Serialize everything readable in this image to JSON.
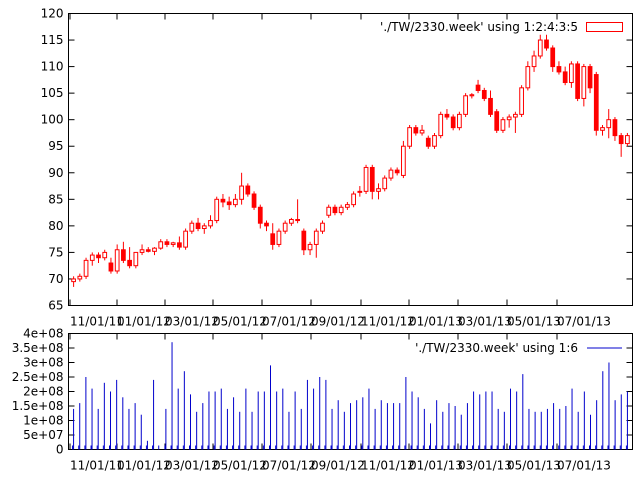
{
  "chart_data": [
    {
      "type": "candlestick",
      "legend": {
        "label": "'./TW/2330.week' using 1:2:4:3:5",
        "position": "top-right"
      },
      "ylim": [
        65,
        120
      ],
      "yticks": [
        65,
        70,
        75,
        80,
        85,
        90,
        95,
        100,
        105,
        110,
        115,
        120
      ],
      "ytick_labels": [
        "65",
        "70",
        "75",
        "80",
        "85",
        "90",
        "95",
        "100",
        "105",
        "110",
        "115",
        "120"
      ],
      "xtick_labels": [
        "11/01/11",
        "01/01/12",
        "03/01/12",
        "05/01/12",
        "07/01/12",
        "09/01/12",
        "11/01/12",
        "01/01/13",
        "03/01/13",
        "05/01/13",
        "07/01/13"
      ],
      "grid": false,
      "colors": {
        "series": "#ff0000",
        "axes": "#000000"
      },
      "candles": [
        {
          "o": 69.5,
          "h": 70.5,
          "l": 68.5,
          "c": 70.0
        },
        {
          "o": 70.0,
          "h": 71.0,
          "l": 69.5,
          "c": 70.5
        },
        {
          "o": 70.5,
          "h": 74.0,
          "l": 70.0,
          "c": 73.5
        },
        {
          "o": 73.5,
          "h": 75.0,
          "l": 72.5,
          "c": 74.5
        },
        {
          "o": 74.5,
          "h": 75.0,
          "l": 73.0,
          "c": 74.0
        },
        {
          "o": 74.0,
          "h": 75.5,
          "l": 73.5,
          "c": 75.0
        },
        {
          "o": 73.0,
          "h": 74.0,
          "l": 71.0,
          "c": 71.5
        },
        {
          "o": 71.5,
          "h": 76.5,
          "l": 71.0,
          "c": 75.5
        },
        {
          "o": 75.5,
          "h": 77.0,
          "l": 73.0,
          "c": 73.5
        },
        {
          "o": 73.5,
          "h": 76.0,
          "l": 72.0,
          "c": 72.5
        },
        {
          "o": 72.5,
          "h": 75.0,
          "l": 72.0,
          "c": 75.0
        },
        {
          "o": 75.0,
          "h": 76.5,
          "l": 74.5,
          "c": 75.5
        },
        {
          "o": 75.5,
          "h": 76.0,
          "l": 75.0,
          "c": 75.2
        },
        {
          "o": 75.2,
          "h": 76.0,
          "l": 74.5,
          "c": 75.8
        },
        {
          "o": 75.8,
          "h": 77.5,
          "l": 75.5,
          "c": 77.0
        },
        {
          "o": 77.0,
          "h": 77.5,
          "l": 76.0,
          "c": 76.5
        },
        {
          "o": 76.5,
          "h": 77.0,
          "l": 76.0,
          "c": 76.8
        },
        {
          "o": 76.8,
          "h": 78.0,
          "l": 75.5,
          "c": 76.0
        },
        {
          "o": 76.0,
          "h": 79.5,
          "l": 75.5,
          "c": 79.0
        },
        {
          "o": 79.0,
          "h": 81.0,
          "l": 78.5,
          "c": 80.5
        },
        {
          "o": 80.5,
          "h": 81.5,
          "l": 79.0,
          "c": 79.5
        },
        {
          "o": 79.5,
          "h": 80.5,
          "l": 78.5,
          "c": 80.0
        },
        {
          "o": 80.0,
          "h": 82.0,
          "l": 79.5,
          "c": 81.0
        },
        {
          "o": 81.0,
          "h": 85.5,
          "l": 80.5,
          "c": 85.0
        },
        {
          "o": 85.0,
          "h": 86.0,
          "l": 83.5,
          "c": 84.5
        },
        {
          "o": 84.5,
          "h": 85.5,
          "l": 83.0,
          "c": 84.0
        },
        {
          "o": 84.0,
          "h": 86.0,
          "l": 83.5,
          "c": 85.0
        },
        {
          "o": 85.0,
          "h": 90.0,
          "l": 84.0,
          "c": 87.5
        },
        {
          "o": 87.5,
          "h": 88.0,
          "l": 85.5,
          "c": 86.0
        },
        {
          "o": 86.0,
          "h": 86.5,
          "l": 83.0,
          "c": 83.5
        },
        {
          "o": 83.5,
          "h": 84.0,
          "l": 79.5,
          "c": 80.5
        },
        {
          "o": 80.5,
          "h": 81.0,
          "l": 79.0,
          "c": 80.0
        },
        {
          "o": 78.5,
          "h": 80.5,
          "l": 75.5,
          "c": 76.5
        },
        {
          "o": 76.5,
          "h": 79.5,
          "l": 76.0,
          "c": 79.0
        },
        {
          "o": 79.0,
          "h": 81.0,
          "l": 78.5,
          "c": 80.5
        },
        {
          "o": 80.5,
          "h": 81.5,
          "l": 80.0,
          "c": 81.2
        },
        {
          "o": 81.2,
          "h": 85.0,
          "l": 80.5,
          "c": 81.0
        },
        {
          "o": 79.0,
          "h": 79.5,
          "l": 74.5,
          "c": 75.5
        },
        {
          "o": 75.5,
          "h": 77.0,
          "l": 74.5,
          "c": 76.5
        },
        {
          "o": 76.5,
          "h": 79.5,
          "l": 74.0,
          "c": 79.0
        },
        {
          "o": 79.0,
          "h": 81.0,
          "l": 78.5,
          "c": 80.5
        },
        {
          "o": 82.0,
          "h": 84.0,
          "l": 81.5,
          "c": 83.5
        },
        {
          "o": 83.5,
          "h": 84.0,
          "l": 82.0,
          "c": 82.5
        },
        {
          "o": 82.5,
          "h": 84.0,
          "l": 82.0,
          "c": 83.5
        },
        {
          "o": 83.5,
          "h": 84.5,
          "l": 83.0,
          "c": 84.0
        },
        {
          "o": 84.0,
          "h": 86.5,
          "l": 83.5,
          "c": 86.0
        },
        {
          "o": 86.5,
          "h": 87.5,
          "l": 85.5,
          "c": 86.5
        },
        {
          "o": 86.5,
          "h": 91.5,
          "l": 86.0,
          "c": 91.0
        },
        {
          "o": 91.0,
          "h": 91.5,
          "l": 85.0,
          "c": 86.5
        },
        {
          "o": 86.5,
          "h": 88.0,
          "l": 85.0,
          "c": 87.0
        },
        {
          "o": 87.0,
          "h": 89.5,
          "l": 86.5,
          "c": 89.0
        },
        {
          "o": 89.0,
          "h": 91.0,
          "l": 88.5,
          "c": 90.5
        },
        {
          "o": 90.5,
          "h": 91.0,
          "l": 89.5,
          "c": 90.0
        },
        {
          "o": 89.5,
          "h": 96.0,
          "l": 89.0,
          "c": 95.0
        },
        {
          "o": 95.0,
          "h": 99.0,
          "l": 94.5,
          "c": 98.5
        },
        {
          "o": 98.5,
          "h": 99.0,
          "l": 97.0,
          "c": 97.5
        },
        {
          "o": 97.5,
          "h": 99.0,
          "l": 97.0,
          "c": 98.0
        },
        {
          "o": 96.5,
          "h": 97.0,
          "l": 94.5,
          "c": 95.0
        },
        {
          "o": 95.0,
          "h": 97.5,
          "l": 94.5,
          "c": 97.0
        },
        {
          "o": 97.0,
          "h": 101.5,
          "l": 96.5,
          "c": 101.0
        },
        {
          "o": 101.0,
          "h": 102.0,
          "l": 100.0,
          "c": 100.5
        },
        {
          "o": 100.5,
          "h": 101.0,
          "l": 98.0,
          "c": 98.5
        },
        {
          "o": 98.5,
          "h": 101.5,
          "l": 98.0,
          "c": 101.0
        },
        {
          "o": 101.0,
          "h": 105.0,
          "l": 100.5,
          "c": 104.5
        },
        {
          "o": 104.5,
          "h": 105.0,
          "l": 104.0,
          "c": 104.7
        },
        {
          "o": 106.5,
          "h": 107.5,
          "l": 105.0,
          "c": 105.5
        },
        {
          "o": 105.5,
          "h": 106.0,
          "l": 103.5,
          "c": 104.0
        },
        {
          "o": 104.0,
          "h": 105.5,
          "l": 100.5,
          "c": 101.0
        },
        {
          "o": 101.5,
          "h": 102.0,
          "l": 97.5,
          "c": 98.0
        },
        {
          "o": 98.0,
          "h": 100.5,
          "l": 97.5,
          "c": 100.0
        },
        {
          "o": 100.0,
          "h": 101.0,
          "l": 98.5,
          "c": 100.5
        },
        {
          "o": 100.5,
          "h": 101.5,
          "l": 97.5,
          "c": 101.0
        },
        {
          "o": 101.0,
          "h": 106.5,
          "l": 100.5,
          "c": 106.0
        },
        {
          "o": 106.0,
          "h": 111.0,
          "l": 105.5,
          "c": 110.0
        },
        {
          "o": 110.0,
          "h": 113.0,
          "l": 109.0,
          "c": 112.0
        },
        {
          "o": 112.0,
          "h": 116.0,
          "l": 111.5,
          "c": 115.0
        },
        {
          "o": 115.0,
          "h": 116.0,
          "l": 113.0,
          "c": 113.5
        },
        {
          "o": 113.5,
          "h": 114.0,
          "l": 109.0,
          "c": 110.0
        },
        {
          "o": 110.0,
          "h": 111.0,
          "l": 108.5,
          "c": 109.0
        },
        {
          "o": 109.0,
          "h": 110.0,
          "l": 106.5,
          "c": 107.0
        },
        {
          "o": 107.0,
          "h": 111.0,
          "l": 106.0,
          "c": 110.5
        },
        {
          "o": 110.5,
          "h": 111.0,
          "l": 103.5,
          "c": 104.0
        },
        {
          "o": 104.0,
          "h": 110.5,
          "l": 102.5,
          "c": 110.0
        },
        {
          "o": 110.0,
          "h": 110.5,
          "l": 105.0,
          "c": 106.0
        },
        {
          "o": 108.5,
          "h": 109.0,
          "l": 97.0,
          "c": 98.0
        },
        {
          "o": 98.0,
          "h": 99.0,
          "l": 97.0,
          "c": 98.5
        },
        {
          "o": 98.5,
          "h": 102.0,
          "l": 96.5,
          "c": 100.0
        },
        {
          "o": 100.0,
          "h": 100.5,
          "l": 96.0,
          "c": 97.0
        },
        {
          "o": 97.0,
          "h": 97.5,
          "l": 93.0,
          "c": 95.5
        },
        {
          "o": 95.5,
          "h": 97.5,
          "l": 95.0,
          "c": 97.0
        }
      ]
    },
    {
      "type": "bar",
      "legend": {
        "label": "'./TW/2330.week' using 1:6",
        "position": "top-right"
      },
      "ylim": [
        0,
        400000000
      ],
      "yticks": [
        0,
        50000000,
        100000000,
        150000000,
        200000000,
        250000000,
        300000000,
        350000000,
        400000000
      ],
      "ytick_labels": [
        "0",
        "5e+07",
        "1e+08",
        "1.5e+08",
        "2e+08",
        "2.5e+08",
        "3e+08",
        "3.5e+08",
        "4e+08"
      ],
      "xtick_labels": [
        "11/01/11",
        "01/01/12",
        "03/01/12",
        "05/01/12",
        "07/01/12",
        "09/01/12",
        "11/01/12",
        "01/01/13",
        "03/01/13",
        "05/01/13",
        "07/01/13"
      ],
      "grid": false,
      "colors": {
        "series": "#0000cc",
        "axes": "#000000"
      },
      "values": [
        140000000,
        160000000,
        250000000,
        210000000,
        140000000,
        230000000,
        200000000,
        240000000,
        180000000,
        140000000,
        160000000,
        120000000,
        30000000,
        240000000,
        0,
        140000000,
        370000000,
        210000000,
        270000000,
        190000000,
        130000000,
        160000000,
        200000000,
        200000000,
        210000000,
        140000000,
        180000000,
        130000000,
        210000000,
        130000000,
        200000000,
        200000000,
        290000000,
        200000000,
        210000000,
        130000000,
        200000000,
        140000000,
        240000000,
        210000000,
        250000000,
        240000000,
        140000000,
        170000000,
        130000000,
        160000000,
        170000000,
        180000000,
        210000000,
        140000000,
        170000000,
        160000000,
        160000000,
        160000000,
        250000000,
        200000000,
        180000000,
        140000000,
        90000000,
        170000000,
        130000000,
        160000000,
        150000000,
        120000000,
        160000000,
        200000000,
        190000000,
        200000000,
        200000000,
        140000000,
        130000000,
        210000000,
        200000000,
        260000000,
        140000000,
        130000000,
        130000000,
        140000000,
        160000000,
        140000000,
        150000000,
        210000000,
        130000000,
        200000000,
        120000000,
        170000000,
        270000000,
        300000000,
        170000000,
        190000000,
        200000000
      ]
    }
  ]
}
